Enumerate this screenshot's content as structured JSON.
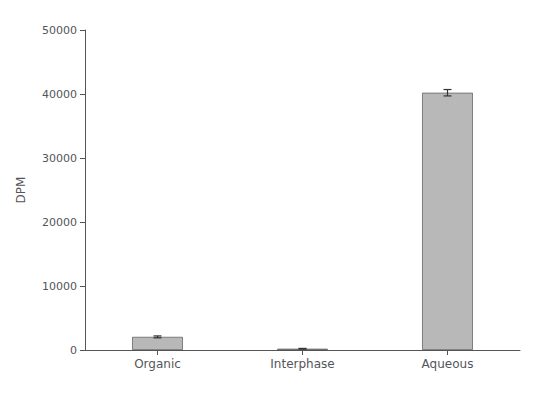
{
  "chart_data": {
    "type": "bar",
    "categories": [
      "Organic",
      "Interphase",
      "Aqueous"
    ],
    "values": [
      2050,
      200,
      40200
    ],
    "errors": [
      150,
      50,
      500
    ],
    "color": "#b8b8b8",
    "ylabel": "DPM",
    "ylim": [
      0,
      50000
    ],
    "yticks": [
      0,
      10000,
      20000,
      30000,
      40000,
      50000
    ],
    "grid": false
  }
}
